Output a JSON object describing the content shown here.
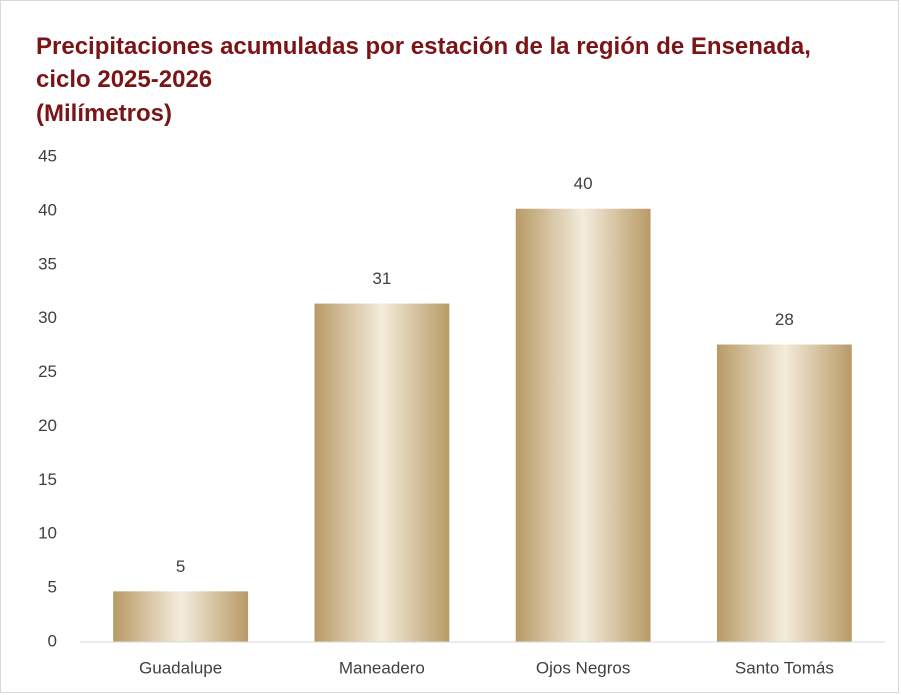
{
  "chart_data": {
    "type": "bar",
    "title": [
      "Precipitaciones acumuladas por estación de la región de Ensenada,",
      "ciclo 2025-2026"
    ],
    "subtitle": "(Milímetros)",
    "categories": [
      "Guadalupe",
      "Maneadero",
      "Ojos Negros",
      "Santo Tomás"
    ],
    "values": [
      4.7,
      31.4,
      40.2,
      27.6
    ],
    "value_labels": [
      "5",
      "31",
      "40",
      "28"
    ],
    "color": "#b89a66",
    "ylim": [
      0,
      45
    ],
    "yticks": [
      0,
      5,
      10,
      15,
      20,
      25,
      30,
      35,
      40,
      45
    ],
    "grid": false
  }
}
